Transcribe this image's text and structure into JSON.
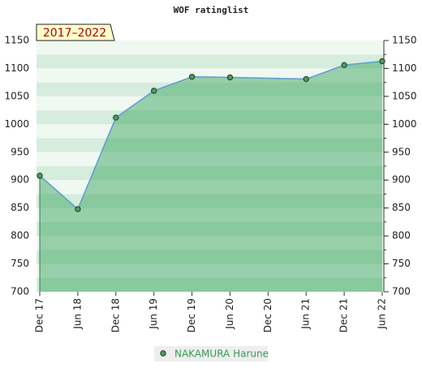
{
  "chart_data": {
    "type": "line",
    "title": "WOF ratinglist",
    "period": "2017–2022",
    "categories": [
      "Dec 17",
      "Jun 18",
      "Dec 18",
      "Jun 19",
      "Dec 19",
      "Jun 20",
      "Dec 20",
      "Jun 21",
      "Dec 21",
      "Jun 22"
    ],
    "ylim": [
      700,
      1150
    ],
    "yticks": [
      700,
      750,
      800,
      850,
      900,
      950,
      1000,
      1050,
      1100,
      1150
    ],
    "series": [
      {
        "name": "NAKAMURA Harune",
        "color": "#5b9bd5",
        "x": [
          "Dec 17",
          "Jun 18",
          "Dec 18",
          "Jun 19",
          "Dec 19",
          "Jun 20",
          "Jun 21",
          "Dec 21",
          "Jun 22"
        ],
        "values": [
          908,
          848,
          1012,
          1060,
          1085,
          1084,
          1081,
          1106,
          1113
        ]
      }
    ]
  }
}
